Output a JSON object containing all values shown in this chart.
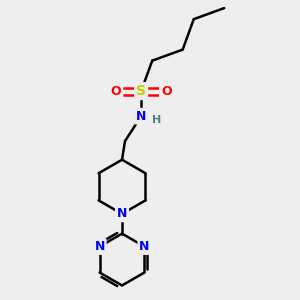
{
  "background_color": "#eeeeee",
  "atom_colors": {
    "C": "#000000",
    "N": "#0000ff",
    "S": "#cccc00",
    "O": "#ff0000",
    "H": "#508080"
  },
  "bond_color": "#000000",
  "bond_width": 1.8,
  "figsize": [
    3.0,
    3.0
  ],
  "dpi": 100,
  "xlim": [
    0,
    10
  ],
  "ylim": [
    0,
    10
  ]
}
